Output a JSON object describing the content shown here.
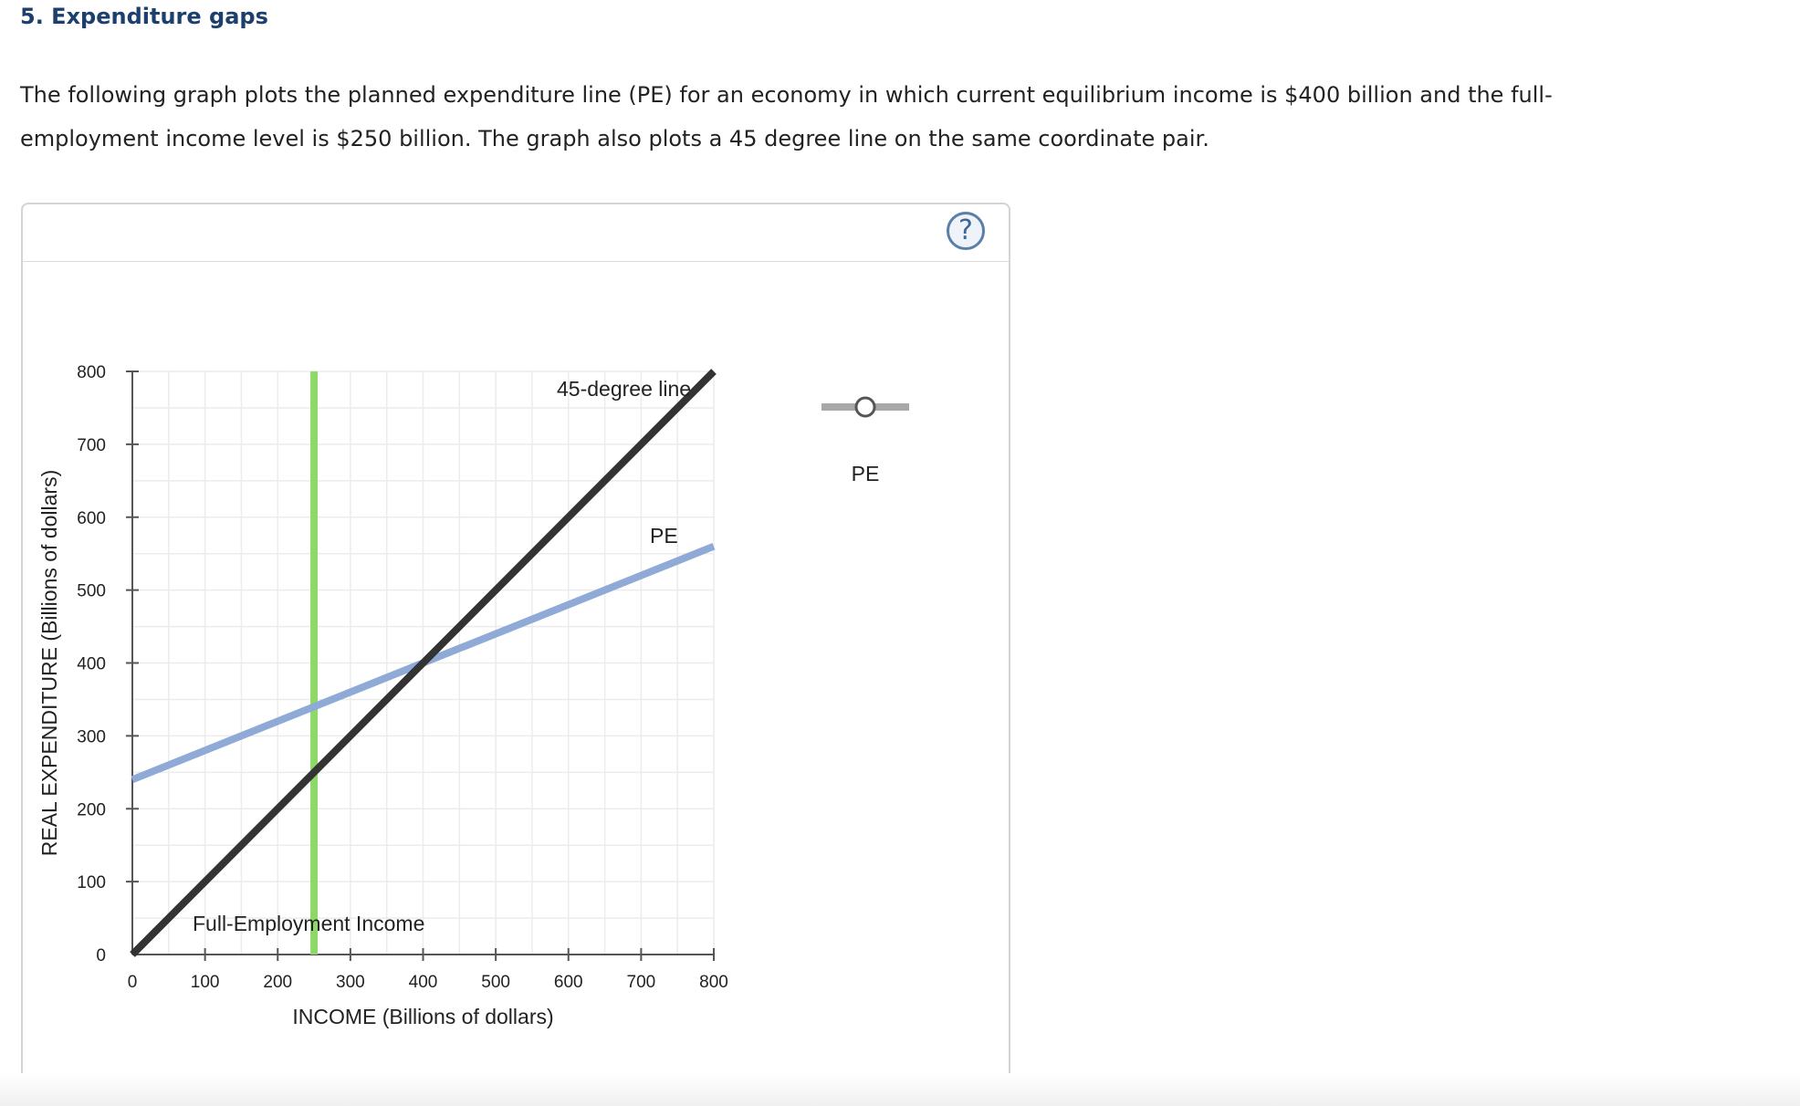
{
  "question": {
    "title": "5. Expenditure gaps",
    "text": "The following graph plots the planned expenditure line (PE) for an economy in which current equilibrium income is $400 billion and the full-employment income level is $250 billion. The graph also plots a 45 degree line on the same coordinate pair."
  },
  "help_icon": "question-circle-icon",
  "colors": {
    "title": "#1d3f6e",
    "pe": "#8faad6",
    "forty_five": "#333333",
    "full_employment": "#8ed868",
    "legend_line": "#a8a8a8"
  },
  "legend": {
    "items": [
      {
        "label": "PE",
        "marker": "hollow-circle-on-line"
      }
    ]
  },
  "chart_data": {
    "type": "line",
    "xlabel": "INCOME (Billions of dollars)",
    "ylabel": "REAL EXPENDITURE (Billions of dollars)",
    "xlim": [
      0,
      800
    ],
    "ylim": [
      0,
      800
    ],
    "xticks": [
      0,
      100,
      200,
      300,
      400,
      500,
      600,
      700,
      800
    ],
    "yticks": [
      0,
      100,
      200,
      300,
      400,
      500,
      600,
      700,
      800
    ],
    "grid": true,
    "series": [
      {
        "name": "45-degree line",
        "x": [
          0,
          800
        ],
        "y": [
          0,
          800
        ],
        "color": "#333333"
      },
      {
        "name": "PE",
        "x": [
          0,
          800
        ],
        "y": [
          240,
          560
        ],
        "color": "#8faad6"
      }
    ],
    "vertical_lines": [
      {
        "label": "Full-Employment Income",
        "x": 250,
        "color": "#8ed868"
      }
    ],
    "annotations": [
      "45-degree line",
      "PE",
      "Full-Employment Income"
    ]
  }
}
